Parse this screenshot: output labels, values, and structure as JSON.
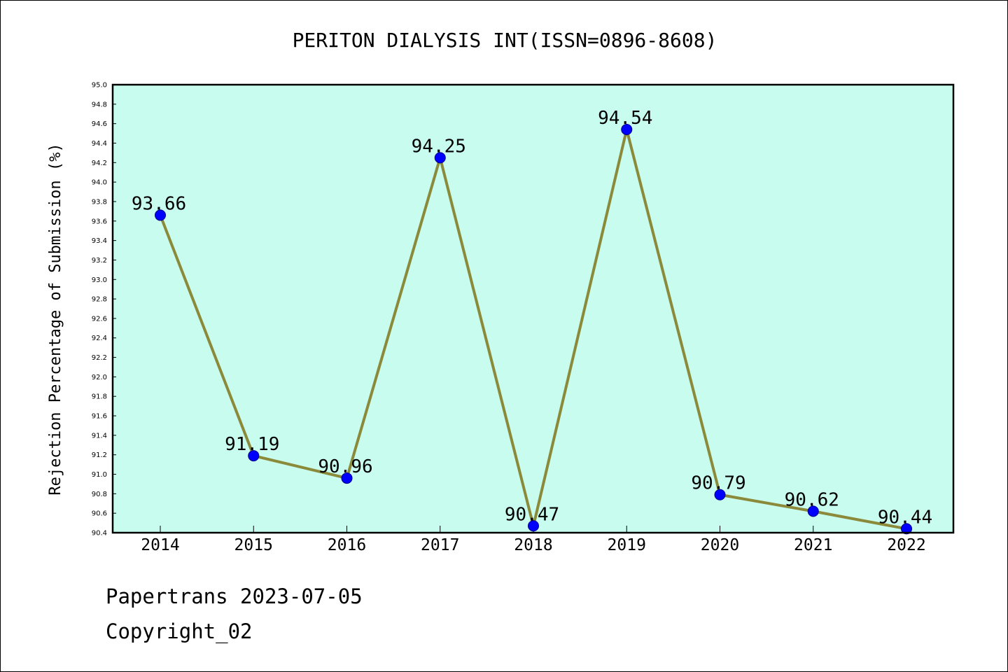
{
  "chart_data": {
    "type": "line",
    "title": "PERITON DIALYSIS INT(ISSN=0896-8608)",
    "xlabel": "",
    "ylabel": "Rejection Percentage of Submission (%)",
    "x": [
      "2014",
      "2015",
      "2016",
      "2017",
      "2018",
      "2019",
      "2020",
      "2021",
      "2022"
    ],
    "series": [
      {
        "values": [
          93.66,
          91.19,
          90.96,
          94.25,
          90.47,
          94.54,
          90.79,
          90.62,
          90.44
        ],
        "labels": [
          "93.66",
          "91.19",
          "90.96",
          "94.25",
          "90.47",
          "94.54",
          "90.79",
          "90.62",
          "90.44"
        ]
      }
    ],
    "ylim": [
      90.4,
      95.0
    ],
    "yticks": [
      "90.4",
      "90.6",
      "90.8",
      "91.0",
      "91.2",
      "91.4",
      "91.6",
      "91.8",
      "92.0",
      "92.2",
      "92.4",
      "92.6",
      "92.8",
      "93.0",
      "93.2",
      "93.4",
      "93.6",
      "93.8",
      "94.0",
      "94.2",
      "94.4",
      "94.6",
      "94.8",
      "95.0"
    ],
    "grid": false,
    "legend": "none",
    "colors": {
      "plot_background": "#c8fcee",
      "line": "#8b8a3a",
      "marker": "#0000ff",
      "marker_edge": "#00008b"
    }
  },
  "footer": {
    "date_line": "Papertrans 2023-07-05",
    "copyright_line": "Copyright_02"
  }
}
